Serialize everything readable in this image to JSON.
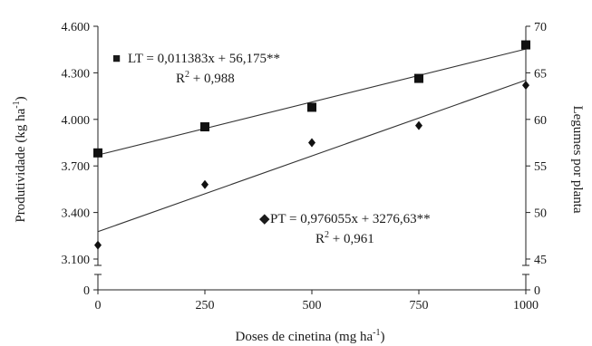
{
  "chart_data": {
    "type": "scatter",
    "xlabel": "Doses de cinetina (mg ha",
    "xlabel_sup": "-1",
    "xlabel_end": ")",
    "ylabel_left": "Produtividade (kg ha",
    "ylabel_left_sup": "-1",
    "ylabel_left_end": ")",
    "ylabel_right": "Legumes por planta",
    "x_ticks": [
      "0",
      "250",
      "500",
      "750",
      "1000"
    ],
    "y_left_ticks": [
      "0",
      "3.100",
      "3.400",
      "3.700",
      "4.000",
      "4.300",
      "4.600"
    ],
    "y_right_ticks": [
      "0",
      "45",
      "50",
      "55",
      "60",
      "65",
      "70"
    ],
    "x_range": [
      0,
      1000
    ],
    "y_left_range": [
      3100,
      4600
    ],
    "y_right_range": [
      45,
      70
    ],
    "axis_break": true,
    "grid": false,
    "series": [
      {
        "key": "LT",
        "axis": "right",
        "marker": "square",
        "x": [
          0,
          250,
          500,
          750,
          1000
        ],
        "y": [
          56.4,
          59.2,
          61.3,
          64.4,
          68.0
        ],
        "fit": {
          "slope": 0.011383,
          "intercept": 56.175
        },
        "equation_marker": "■",
        "equation": "LT = 0,011383x + 56,175**",
        "r2_prefix": "R",
        "r2_sup": "2",
        "r2_value": " + 0,988"
      },
      {
        "key": "PT",
        "axis": "left",
        "marker": "diamond",
        "x": [
          0,
          250,
          500,
          750,
          1000
        ],
        "y": [
          3190,
          3580,
          3850,
          3960,
          4220
        ],
        "fit": {
          "slope": 0.976055,
          "intercept": 3276.63
        },
        "equation_marker": "◆",
        "equation": "PT = 0,976055x + 3276,63**",
        "r2_prefix": "R",
        "r2_sup": "2",
        "r2_value": " + 0,961"
      }
    ]
  }
}
